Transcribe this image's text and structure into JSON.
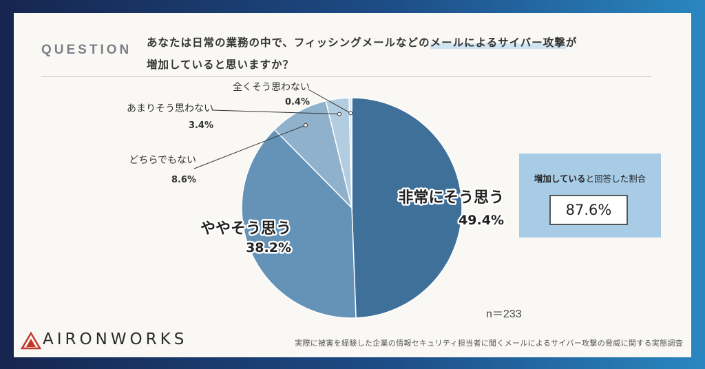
{
  "question_label": "QUESTION",
  "question": {
    "line1_pre": "あなたは日常の業務の中で、フィッシングメールなどの",
    "line1_highlight": "メールによるサイバー攻撃",
    "line1_post": "が",
    "line2": "増加していると思いますか？"
  },
  "colors": {
    "very_much": "#3f7099",
    "somewhat": "#6493b7",
    "neither": "#8fb1cc",
    "not_much": "#b3cde0",
    "not_at_all": "#d4e2ed",
    "side_box": "#a8cce6"
  },
  "chart_data": {
    "type": "pie",
    "title": "",
    "slices": [
      {
        "label": "非常にそう思う",
        "value": 49.4,
        "value_text": "49.4%"
      },
      {
        "label": "ややそう思う",
        "value": 38.2,
        "value_text": "38.2%"
      },
      {
        "label": "どちらでもない",
        "value": 8.6,
        "value_text": "8.6%"
      },
      {
        "label": "あまりそう思わない",
        "value": 3.4,
        "value_text": "3.4%"
      },
      {
        "label": "全くそう思わない",
        "value": 0.4,
        "value_text": "0.4%"
      }
    ],
    "sample_size": "n＝233"
  },
  "summary": {
    "title_bold": "増加している",
    "title_rest": "と回答した割合",
    "value": "87.6%"
  },
  "brand": {
    "name": "AIRONWORKS"
  },
  "footer": "実際に被害を経験した企業の情報セキュリティ担当者に聞くメールによるサイバー攻撃の脅威に関する実態調査"
}
